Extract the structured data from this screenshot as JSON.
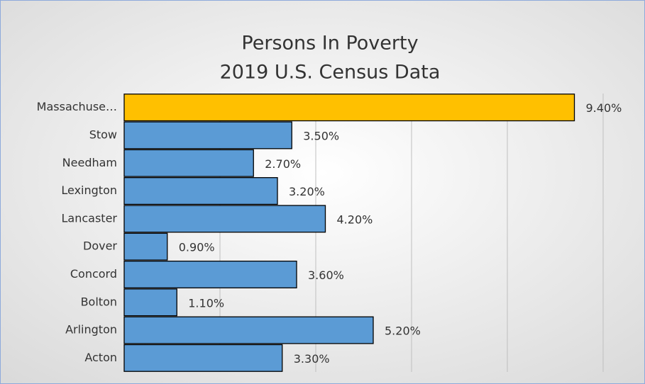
{
  "chart_data": {
    "type": "barh",
    "title": "Persons In Poverty",
    "subtitle": "2019 U.S. Census Data",
    "categories": [
      "Massachuse…",
      "Stow",
      "Needham",
      "Lexington",
      "Lancaster",
      "Dover",
      "Concord",
      "Bolton",
      "Arlington",
      "Acton"
    ],
    "values": [
      9.4,
      3.5,
      2.7,
      3.2,
      4.2,
      0.9,
      3.6,
      1.1,
      5.2,
      3.3
    ],
    "value_labels": [
      "9.40%",
      "3.50%",
      "2.70%",
      "3.20%",
      "4.20%",
      "0.90%",
      "3.60%",
      "1.10%",
      "5.20%",
      "3.30%"
    ],
    "colors": [
      "#ffc000",
      "#5b9bd5",
      "#5b9bd5",
      "#5b9bd5",
      "#5b9bd5",
      "#5b9bd5",
      "#5b9bd5",
      "#5b9bd5",
      "#5b9bd5",
      "#5b9bd5"
    ],
    "xlim": [
      0,
      10
    ],
    "xticks": [
      0,
      2,
      4,
      6,
      8,
      10
    ],
    "grid": true
  }
}
